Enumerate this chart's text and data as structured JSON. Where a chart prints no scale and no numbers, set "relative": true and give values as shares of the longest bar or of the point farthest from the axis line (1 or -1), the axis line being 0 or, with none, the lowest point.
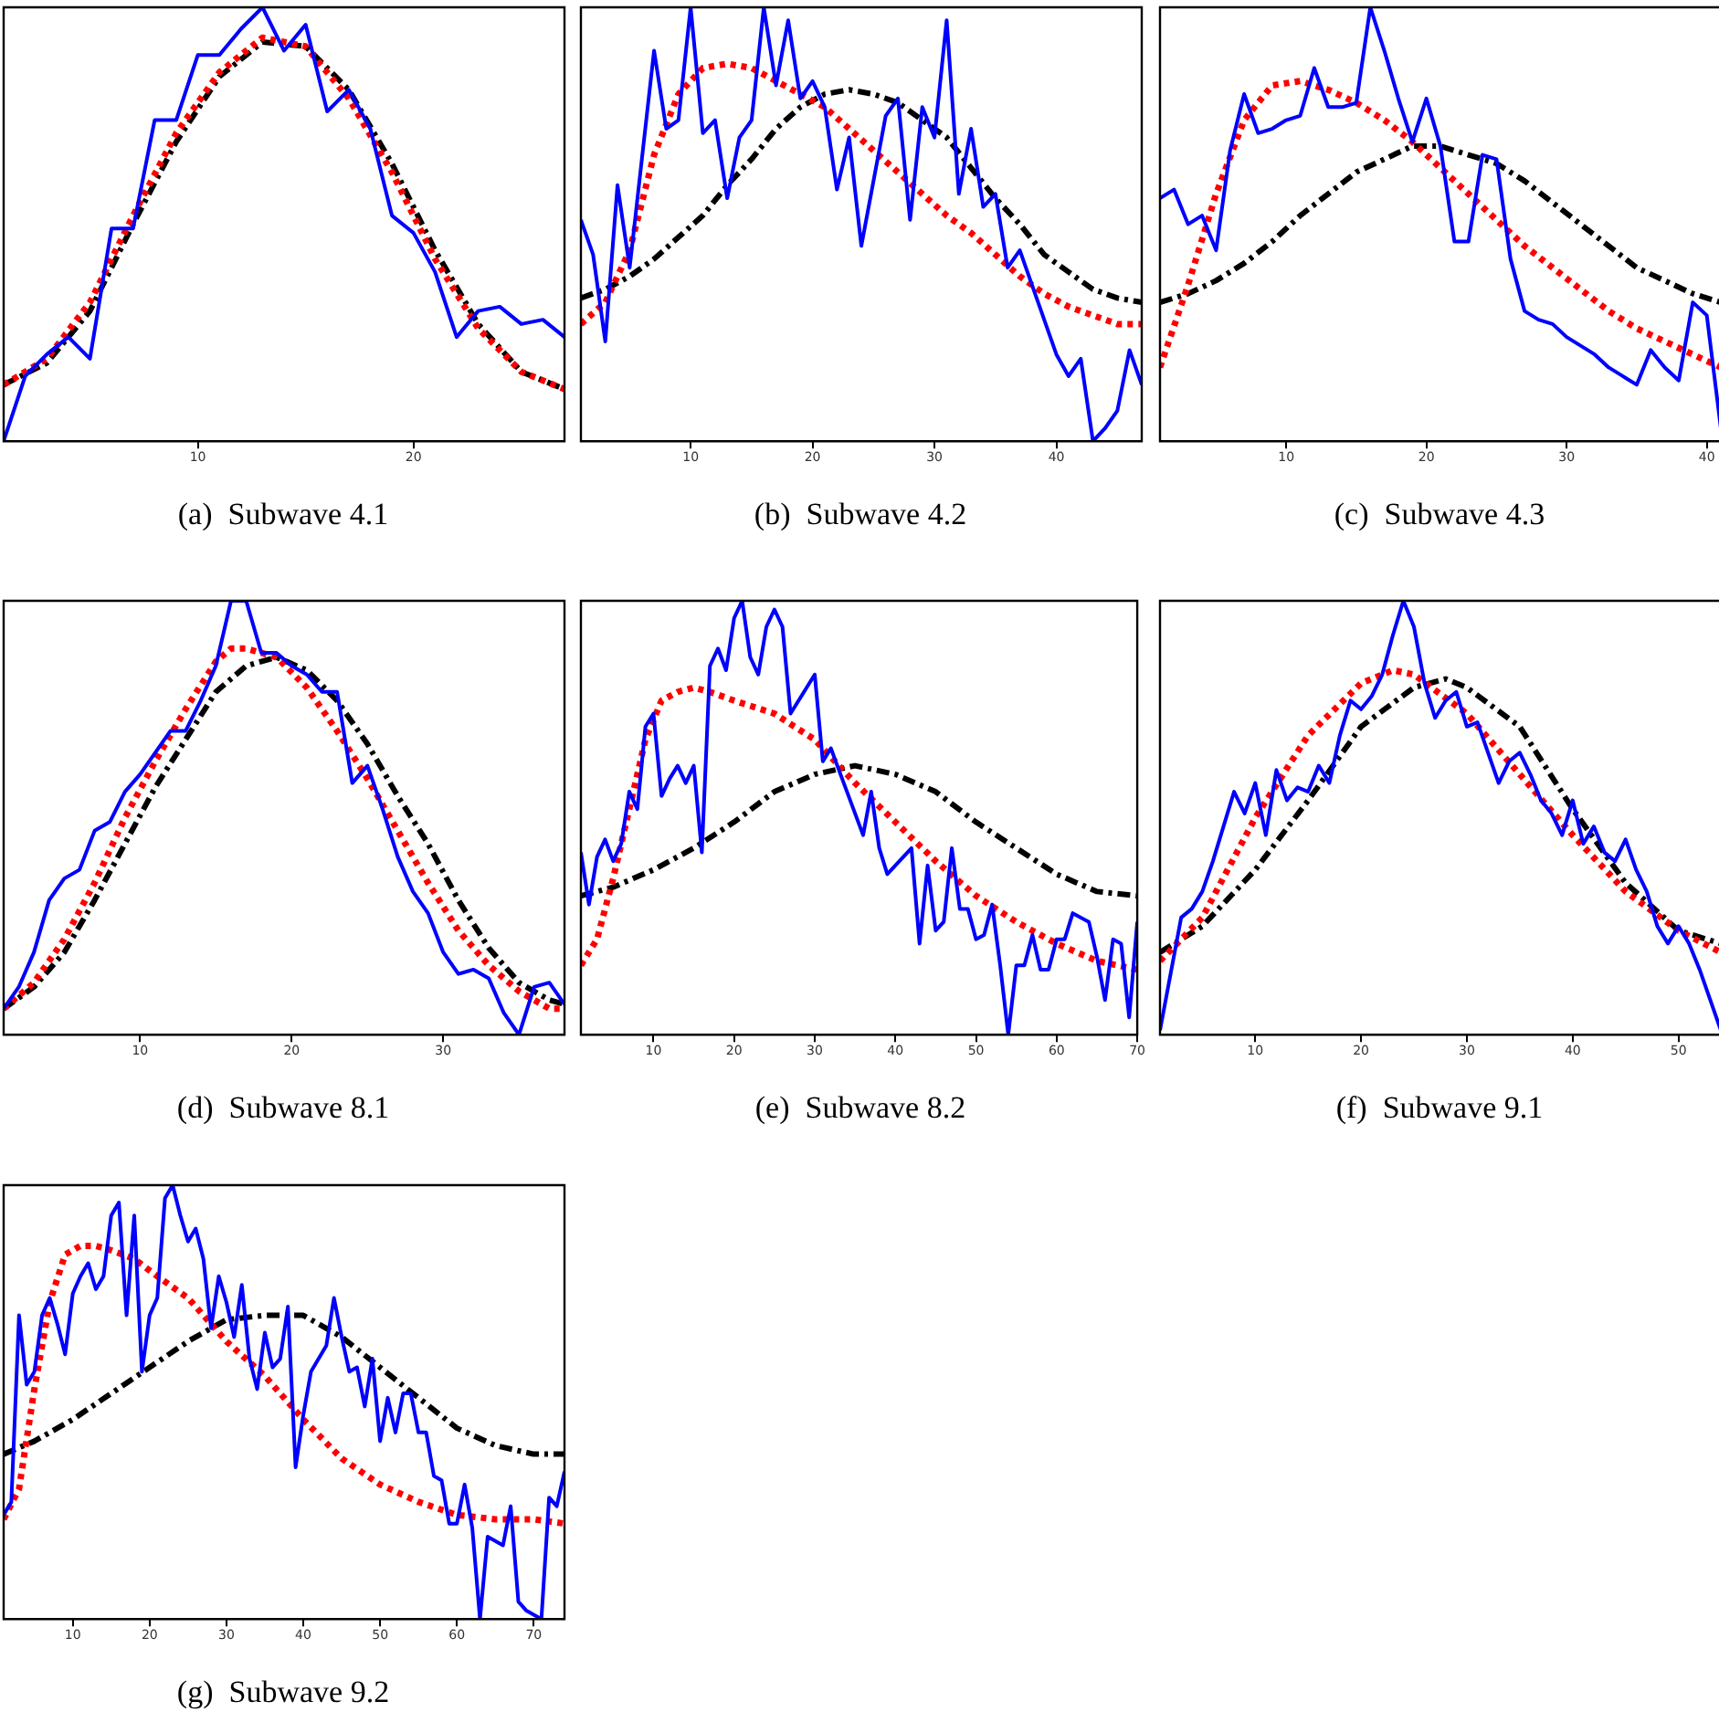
{
  "chart_data": [
    {
      "type": "line",
      "title": "(a)  Subwave 4.1",
      "relative": true,
      "xlim": [
        1,
        27
      ],
      "xticks": [
        10,
        20
      ],
      "legend": false,
      "grid": false,
      "marker": "none",
      "series": [
        {
          "color": "#0000ff",
          "line_style": "solid",
          "x": [
            1,
            2,
            3,
            4,
            5,
            6,
            7,
            8,
            9,
            10,
            11,
            12,
            13,
            14,
            15,
            16,
            17,
            18,
            19,
            20,
            21,
            22,
            23,
            24,
            25,
            26,
            27
          ],
          "values": [
            0,
            0.15,
            0.2,
            0.24,
            0.19,
            0.49,
            0.49,
            0.74,
            0.74,
            0.89,
            0.89,
            0.95,
            1.0,
            0.9,
            0.96,
            0.76,
            0.81,
            0.72,
            0.52,
            0.48,
            0.39,
            0.24,
            0.3,
            0.31,
            0.27,
            0.28,
            0.24
          ]
        },
        {
          "color": "#ff0000",
          "line_style": "dotted",
          "x": [
            1,
            3,
            5,
            7,
            9,
            11,
            13,
            15,
            17,
            19,
            21,
            23,
            25,
            27
          ],
          "values": [
            0.13,
            0.19,
            0.32,
            0.52,
            0.71,
            0.85,
            0.93,
            0.91,
            0.79,
            0.62,
            0.42,
            0.26,
            0.16,
            0.12
          ]
        },
        {
          "color": "#000000",
          "line_style": "dashed",
          "x": [
            1,
            3,
            5,
            7,
            9,
            11,
            13,
            15,
            17,
            19,
            21,
            23,
            25,
            27
          ],
          "values": [
            0.13,
            0.18,
            0.3,
            0.5,
            0.69,
            0.84,
            0.92,
            0.91,
            0.81,
            0.64,
            0.44,
            0.27,
            0.16,
            0.12
          ]
        }
      ]
    },
    {
      "type": "line",
      "title": "(b)  Subwave 4.2",
      "relative": true,
      "xlim": [
        1,
        47
      ],
      "xticks": [
        10,
        20,
        30,
        40
      ],
      "legend": false,
      "grid": false,
      "marker": "none",
      "series": [
        {
          "color": "#0000ff",
          "line_style": "solid",
          "x": [
            1,
            2,
            3,
            4,
            5,
            6,
            7,
            8,
            9,
            10,
            11,
            12,
            13,
            14,
            15,
            16,
            17,
            18,
            19,
            20,
            21,
            22,
            23,
            24,
            25,
            26,
            27,
            28,
            29,
            30,
            31,
            32,
            33,
            34,
            35,
            36,
            37,
            38,
            39,
            40,
            41,
            42,
            43,
            44,
            45,
            46,
            47
          ],
          "values": [
            0.51,
            0.43,
            0.23,
            0.59,
            0.4,
            0.65,
            0.9,
            0.72,
            0.74,
            1.0,
            0.71,
            0.74,
            0.56,
            0.7,
            0.74,
            1.0,
            0.82,
            0.97,
            0.79,
            0.83,
            0.77,
            0.58,
            0.7,
            0.45,
            0.6,
            0.75,
            0.79,
            0.51,
            0.77,
            0.7,
            0.97,
            0.57,
            0.72,
            0.54,
            0.57,
            0.4,
            0.44,
            0.36,
            0.28,
            0.2,
            0.15,
            0.19,
            0,
            0.03,
            0.07,
            0.21,
            0.13
          ]
        },
        {
          "color": "#ff0000",
          "line_style": "dotted",
          "x": [
            1,
            3,
            5,
            7,
            9,
            11,
            13,
            15,
            17,
            19,
            21,
            23,
            25,
            27,
            29,
            31,
            33,
            35,
            37,
            39,
            41,
            43,
            45,
            47
          ],
          "values": [
            0.27,
            0.32,
            0.44,
            0.66,
            0.8,
            0.86,
            0.87,
            0.86,
            0.83,
            0.8,
            0.77,
            0.72,
            0.67,
            0.62,
            0.57,
            0.52,
            0.48,
            0.43,
            0.38,
            0.34,
            0.31,
            0.29,
            0.27,
            0.27
          ]
        },
        {
          "color": "#000000",
          "line_style": "dashed",
          "x": [
            1,
            3,
            5,
            7,
            9,
            11,
            13,
            15,
            17,
            19,
            21,
            23,
            25,
            27,
            29,
            31,
            33,
            35,
            37,
            39,
            41,
            43,
            45,
            47
          ],
          "values": [
            0.33,
            0.35,
            0.38,
            0.42,
            0.47,
            0.52,
            0.59,
            0.65,
            0.72,
            0.77,
            0.8,
            0.81,
            0.8,
            0.78,
            0.74,
            0.7,
            0.63,
            0.56,
            0.5,
            0.43,
            0.39,
            0.35,
            0.33,
            0.32
          ]
        }
      ]
    },
    {
      "type": "line",
      "title": "(c)  Subwave 4.3",
      "relative": true,
      "xlim": [
        1,
        41
      ],
      "xticks": [
        10,
        20,
        30,
        40
      ],
      "legend": false,
      "grid": false,
      "marker": "none",
      "series": [
        {
          "color": "#0000ff",
          "line_style": "solid",
          "x": [
            1,
            2,
            3,
            4,
            5,
            6,
            7,
            8,
            9,
            10,
            11,
            12,
            13,
            14,
            15,
            16,
            17,
            18,
            19,
            20,
            21,
            22,
            23,
            24,
            25,
            26,
            27,
            28,
            29,
            30,
            31,
            32,
            33,
            34,
            35,
            36,
            37,
            38,
            39,
            40,
            41
          ],
          "values": [
            0.56,
            0.58,
            0.5,
            0.52,
            0.44,
            0.67,
            0.8,
            0.71,
            0.72,
            0.74,
            0.75,
            0.86,
            0.77,
            0.77,
            0.78,
            1.0,
            0.9,
            0.79,
            0.69,
            0.79,
            0.68,
            0.46,
            0.46,
            0.66,
            0.65,
            0.42,
            0.3,
            0.28,
            0.27,
            0.24,
            0.22,
            0.2,
            0.17,
            0.15,
            0.13,
            0.21,
            0.17,
            0.14,
            0.32,
            0.29,
            0.03
          ]
        },
        {
          "color": "#ff0000",
          "line_style": "dotted",
          "x": [
            1,
            3,
            5,
            7,
            9,
            11,
            13,
            15,
            17,
            19,
            21,
            23,
            25,
            27,
            29,
            31,
            33,
            35,
            37,
            39,
            41
          ],
          "values": [
            0.17,
            0.36,
            0.57,
            0.74,
            0.82,
            0.83,
            0.81,
            0.78,
            0.74,
            0.69,
            0.63,
            0.57,
            0.51,
            0.45,
            0.4,
            0.35,
            0.3,
            0.26,
            0.23,
            0.2,
            0.17
          ]
        },
        {
          "color": "#000000",
          "line_style": "dashed",
          "x": [
            1,
            3,
            5,
            7,
            9,
            11,
            13,
            15,
            17,
            19,
            21,
            23,
            25,
            27,
            29,
            31,
            33,
            35,
            37,
            39,
            41
          ],
          "values": [
            0.32,
            0.34,
            0.37,
            0.41,
            0.46,
            0.52,
            0.57,
            0.62,
            0.65,
            0.68,
            0.68,
            0.66,
            0.64,
            0.6,
            0.55,
            0.5,
            0.45,
            0.4,
            0.37,
            0.34,
            0.32
          ]
        }
      ]
    },
    {
      "type": "line",
      "title": "(d)  Subwave 8.1",
      "relative": true,
      "xlim": [
        1,
        38
      ],
      "xticks": [
        10,
        20,
        30
      ],
      "legend": false,
      "grid": false,
      "marker": "none",
      "series": [
        {
          "color": "#0000ff",
          "line_style": "solid",
          "x": [
            1,
            2,
            3,
            4,
            5,
            6,
            7,
            8,
            9,
            10,
            11,
            12,
            13,
            14,
            15,
            16,
            17,
            18,
            19,
            20,
            21,
            22,
            23,
            24,
            25,
            26,
            27,
            28,
            29,
            30,
            31,
            32,
            33,
            34,
            35,
            36,
            37,
            38
          ],
          "values": [
            0.06,
            0.11,
            0.19,
            0.31,
            0.36,
            0.38,
            0.47,
            0.49,
            0.56,
            0.6,
            0.65,
            0.7,
            0.7,
            0.77,
            0.85,
            1.0,
            1.0,
            0.88,
            0.88,
            0.85,
            0.83,
            0.79,
            0.79,
            0.58,
            0.62,
            0.52,
            0.41,
            0.33,
            0.28,
            0.19,
            0.14,
            0.15,
            0.13,
            0.05,
            0,
            0.11,
            0.12,
            0.07
          ]
        },
        {
          "color": "#ff0000",
          "line_style": "dotted",
          "x": [
            1,
            3,
            5,
            7,
            9,
            11,
            13,
            15,
            16,
            17,
            19,
            21,
            23,
            25,
            27,
            29,
            31,
            33,
            35,
            37,
            38
          ],
          "values": [
            0.06,
            0.12,
            0.22,
            0.35,
            0.5,
            0.63,
            0.75,
            0.86,
            0.89,
            0.89,
            0.87,
            0.8,
            0.7,
            0.59,
            0.47,
            0.35,
            0.24,
            0.16,
            0.1,
            0.06,
            0.06
          ]
        },
        {
          "color": "#000000",
          "line_style": "dashed",
          "x": [
            1,
            3,
            5,
            7,
            9,
            11,
            13,
            15,
            17,
            19,
            21,
            23,
            25,
            27,
            29,
            31,
            33,
            35,
            37,
            38
          ],
          "values": [
            0.06,
            0.11,
            0.19,
            0.31,
            0.44,
            0.57,
            0.68,
            0.79,
            0.85,
            0.87,
            0.84,
            0.77,
            0.67,
            0.55,
            0.44,
            0.31,
            0.2,
            0.12,
            0.08,
            0.07
          ]
        }
      ]
    },
    {
      "type": "line",
      "title": "(e)  Subwave 8.2",
      "relative": true,
      "xlim": [
        1,
        70
      ],
      "xticks": [
        10,
        20,
        30,
        40,
        50,
        60,
        70
      ],
      "legend": false,
      "grid": false,
      "marker": "none",
      "series": [
        {
          "color": "#0000ff",
          "line_style": "solid",
          "x": [
            1,
            2,
            3,
            4,
            5,
            6,
            7,
            8,
            9,
            10,
            11,
            12,
            13,
            14,
            15,
            16,
            17,
            18,
            19,
            20,
            21,
            22,
            23,
            24,
            25,
            26,
            27,
            28,
            29,
            30,
            31,
            32,
            33,
            34,
            35,
            36,
            37,
            38,
            39,
            40,
            41,
            42,
            43,
            44,
            45,
            46,
            47,
            48,
            49,
            50,
            51,
            52,
            53,
            54,
            55,
            56,
            57,
            58,
            59,
            60,
            61,
            62,
            63,
            64,
            65,
            66,
            67,
            68,
            69,
            70
          ],
          "values": [
            0.42,
            0.3,
            0.41,
            0.45,
            0.4,
            0.44,
            0.56,
            0.52,
            0.71,
            0.74,
            0.55,
            0.59,
            0.62,
            0.58,
            0.62,
            0.42,
            0.85,
            0.89,
            0.84,
            0.96,
            1.0,
            0.87,
            0.83,
            0.94,
            0.98,
            0.94,
            0.74,
            0.77,
            0.8,
            0.83,
            0.63,
            0.66,
            0.61,
            0.56,
            0.51,
            0.46,
            0.56,
            0.43,
            0.37,
            0.39,
            0.41,
            0.43,
            0.21,
            0.39,
            0.24,
            0.26,
            0.43,
            0.29,
            0.29,
            0.22,
            0.23,
            0.3,
            0.16,
            0,
            0.16,
            0.16,
            0.23,
            0.15,
            0.15,
            0.22,
            0.22,
            0.28,
            0.27,
            0.26,
            0.18,
            0.08,
            0.22,
            0.21,
            0.04,
            0.26
          ]
        },
        {
          "color": "#ff0000",
          "line_style": "dotted",
          "x": [
            1,
            3,
            5,
            7,
            9,
            11,
            13,
            15,
            17,
            20,
            25,
            30,
            35,
            40,
            45,
            50,
            55,
            60,
            65,
            70
          ],
          "values": [
            0.16,
            0.22,
            0.36,
            0.52,
            0.68,
            0.77,
            0.79,
            0.8,
            0.79,
            0.77,
            0.74,
            0.68,
            0.58,
            0.49,
            0.4,
            0.32,
            0.26,
            0.21,
            0.17,
            0.15
          ]
        },
        {
          "color": "#000000",
          "line_style": "dashed",
          "x": [
            1,
            5,
            10,
            15,
            20,
            25,
            30,
            35,
            40,
            45,
            50,
            55,
            60,
            65,
            70
          ],
          "values": [
            0.32,
            0.34,
            0.38,
            0.43,
            0.49,
            0.56,
            0.6,
            0.62,
            0.6,
            0.56,
            0.49,
            0.43,
            0.37,
            0.33,
            0.32
          ]
        }
      ]
    },
    {
      "type": "line",
      "title": "(f)  Subwave 9.1",
      "relative": true,
      "xlim": [
        1,
        54
      ],
      "xticks": [
        10,
        20,
        30,
        40,
        50
      ],
      "legend": false,
      "grid": false,
      "marker": "none",
      "series": [
        {
          "color": "#0000ff",
          "line_style": "solid",
          "x": [
            1,
            2,
            3,
            4,
            5,
            6,
            7,
            8,
            9,
            10,
            11,
            12,
            13,
            14,
            15,
            16,
            17,
            18,
            19,
            20,
            21,
            22,
            23,
            24,
            25,
            26,
            27,
            28,
            29,
            30,
            31,
            32,
            33,
            34,
            35,
            36,
            37,
            38,
            39,
            40,
            41,
            42,
            43,
            44,
            45,
            46,
            47,
            48,
            49,
            50,
            51,
            52,
            53,
            54
          ],
          "values": [
            0.01,
            0.14,
            0.27,
            0.29,
            0.33,
            0.4,
            0.48,
            0.56,
            0.51,
            0.58,
            0.46,
            0.61,
            0.54,
            0.57,
            0.56,
            0.62,
            0.58,
            0.69,
            0.77,
            0.75,
            0.78,
            0.83,
            0.92,
            1.0,
            0.94,
            0.81,
            0.73,
            0.77,
            0.79,
            0.71,
            0.72,
            0.65,
            0.58,
            0.63,
            0.65,
            0.6,
            0.54,
            0.51,
            0.46,
            0.54,
            0.44,
            0.48,
            0.42,
            0.4,
            0.45,
            0.38,
            0.33,
            0.25,
            0.21,
            0.25,
            0.21,
            0.15,
            0.08,
            0.01
          ]
        },
        {
          "color": "#ff0000",
          "line_style": "dotted",
          "x": [
            1,
            5,
            10,
            15,
            20,
            23,
            25,
            30,
            35,
            40,
            45,
            50,
            54
          ],
          "values": [
            0.17,
            0.27,
            0.5,
            0.69,
            0.81,
            0.84,
            0.83,
            0.74,
            0.6,
            0.46,
            0.33,
            0.24,
            0.19
          ]
        },
        {
          "color": "#000000",
          "line_style": "dashed",
          "x": [
            1,
            5,
            10,
            15,
            20,
            25,
            28,
            30,
            35,
            40,
            45,
            50,
            54
          ],
          "values": [
            0.19,
            0.25,
            0.38,
            0.54,
            0.71,
            0.8,
            0.82,
            0.8,
            0.71,
            0.52,
            0.35,
            0.24,
            0.21
          ]
        }
      ]
    },
    {
      "type": "line",
      "title": "(g)  Subwave 9.2",
      "relative": true,
      "xlim": [
        1,
        74
      ],
      "xticks": [
        10,
        20,
        30,
        40,
        50,
        60,
        70
      ],
      "legend": false,
      "grid": false,
      "marker": "none",
      "series": [
        {
          "color": "#0000ff",
          "line_style": "solid",
          "x": [
            1,
            2,
            3,
            4,
            5,
            6,
            7,
            8,
            9,
            10,
            11,
            12,
            13,
            14,
            15,
            16,
            17,
            18,
            19,
            20,
            21,
            22,
            23,
            24,
            25,
            26,
            27,
            28,
            29,
            30,
            31,
            32,
            33,
            34,
            35,
            36,
            37,
            38,
            39,
            40,
            41,
            42,
            43,
            44,
            45,
            46,
            47,
            48,
            49,
            50,
            51,
            52,
            53,
            54,
            55,
            56,
            57,
            58,
            59,
            60,
            61,
            62,
            63,
            64,
            65,
            66,
            67,
            68,
            69,
            70,
            71,
            72,
            73,
            74
          ],
          "values": [
            0.24,
            0.27,
            0.7,
            0.54,
            0.57,
            0.7,
            0.74,
            0.68,
            0.61,
            0.75,
            0.79,
            0.82,
            0.76,
            0.79,
            0.93,
            0.96,
            0.7,
            0.93,
            0.57,
            0.7,
            0.74,
            0.97,
            1.0,
            0.93,
            0.87,
            0.9,
            0.83,
            0.67,
            0.79,
            0.73,
            0.65,
            0.77,
            0.6,
            0.53,
            0.66,
            0.58,
            0.6,
            0.72,
            0.35,
            0.47,
            0.57,
            0.6,
            0.63,
            0.74,
            0.65,
            0.57,
            0.58,
            0.49,
            0.6,
            0.41,
            0.51,
            0.43,
            0.52,
            0.52,
            0.43,
            0.43,
            0.33,
            0.32,
            0.22,
            0.22,
            0.31,
            0.21,
            0,
            0.19,
            0.18,
            0.17,
            0.26,
            0.04,
            0.02,
            0.01,
            0,
            0.28,
            0.26,
            0.34
          ]
        },
        {
          "color": "#ff0000",
          "line_style": "dotted",
          "x": [
            1,
            3,
            5,
            7,
            9,
            11,
            13,
            15,
            18,
            21,
            25,
            30,
            35,
            40,
            45,
            50,
            55,
            60,
            65,
            70,
            74
          ],
          "values": [
            0.23,
            0.3,
            0.53,
            0.73,
            0.84,
            0.86,
            0.86,
            0.85,
            0.83,
            0.79,
            0.74,
            0.64,
            0.56,
            0.46,
            0.37,
            0.31,
            0.27,
            0.24,
            0.23,
            0.23,
            0.22
          ]
        },
        {
          "color": "#000000",
          "line_style": "dashed",
          "x": [
            1,
            5,
            10,
            15,
            20,
            25,
            30,
            35,
            38,
            40,
            45,
            50,
            55,
            60,
            65,
            70,
            74
          ],
          "values": [
            0.38,
            0.41,
            0.46,
            0.52,
            0.58,
            0.64,
            0.69,
            0.7,
            0.7,
            0.7,
            0.65,
            0.58,
            0.51,
            0.44,
            0.4,
            0.38,
            0.38
          ]
        }
      ]
    }
  ]
}
